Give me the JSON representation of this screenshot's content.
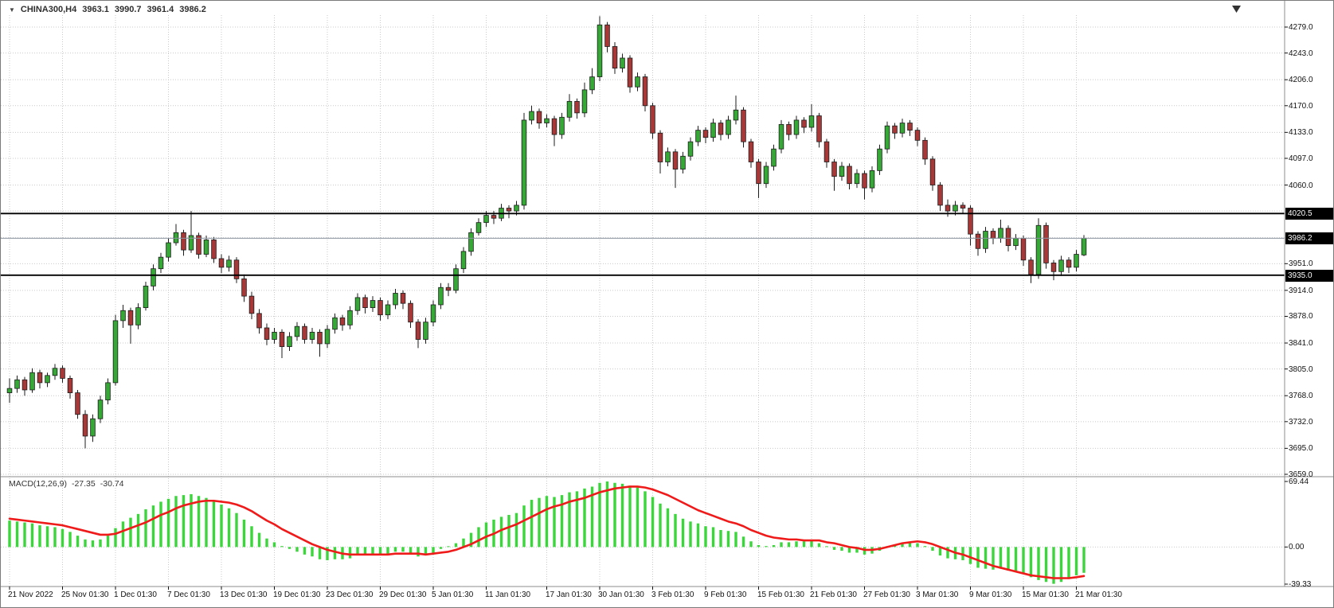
{
  "header": {
    "dropdown_icon": "▼",
    "symbol_period": "CHINA300,H4",
    "open": "3963.1",
    "high": "3990.7",
    "low": "3961.4",
    "close": "3986.2"
  },
  "colors": {
    "background": "#ffffff",
    "grid": "#c9c9c9",
    "bull_body": "#35a835",
    "bear_body": "#a83838",
    "candle_border": "#1c1c1c",
    "wick": "#1c1c1c",
    "macd_histogram": "#3bd63b",
    "macd_signal": "#ef1a1a",
    "hline": "#000000",
    "bid_line": "#8a93a0",
    "badge_bg": "#000000",
    "badge_text": "#ffffff",
    "separator": "#8c8c8c",
    "axis_text": "#111111",
    "shift_marker": "#333333"
  },
  "chart_data": {
    "type": "candlestick",
    "title": "CHINA300,H4",
    "symbol": "CHINA300",
    "timeframe": "H4",
    "current_bar": {
      "open": 3963.1,
      "high": 3990.7,
      "low": 3961.4,
      "close": 3986.2
    },
    "price_axis": {
      "min": 3659.0,
      "max": 4279.0,
      "visible_ticks": [
        "4279.0",
        "4243.0",
        "4206.0",
        "4170.0",
        "4133.0",
        "4097.0",
        "4060.0",
        "3951.0",
        "3914.0",
        "3878.0",
        "3841.0",
        "3805.0",
        "3768.0",
        "3732.0",
        "3695.0",
        "3659.0"
      ],
      "grid_levels": [
        3659,
        3695,
        3732,
        3768,
        3805,
        3841,
        3878,
        3914,
        3951,
        3987,
        4024,
        4060,
        4097,
        4133,
        4170,
        4206,
        4243,
        4279
      ]
    },
    "x_labels": [
      [
        "21 Nov 2022",
        0
      ],
      [
        "25 Nov 01:30",
        7
      ],
      [
        "1 Dec 01:30",
        14
      ],
      [
        "7 Dec 01:30",
        21
      ],
      [
        "13 Dec 01:30",
        28
      ],
      [
        "19 Dec 01:30",
        35
      ],
      [
        "23 Dec 01:30",
        42
      ],
      [
        "29 Dec 01:30",
        49
      ],
      [
        "5 Jan 01:30",
        56
      ],
      [
        "11 Jan 01:30",
        63
      ],
      [
        "17 Jan 01:30",
        71
      ],
      [
        "30 Jan 01:30",
        78
      ],
      [
        "3 Feb 01:30",
        85
      ],
      [
        "9 Feb 01:30",
        92
      ],
      [
        "15 Feb 01:30",
        99
      ],
      [
        "21 Feb 01:30",
        106
      ],
      [
        "27 Feb 01:30",
        113
      ],
      [
        "3 Mar 01:30",
        120
      ],
      [
        "9 Mar 01:30",
        127
      ],
      [
        "15 Mar 01:30",
        134
      ],
      [
        "21 Mar 01:30",
        141
      ]
    ],
    "horizontal_lines": [
      {
        "price": 4020.5,
        "label": "4020.5"
      },
      {
        "price": 3935.0,
        "label": "3935.0"
      }
    ],
    "bid": {
      "price": 3986.2,
      "label": "3986.2"
    },
    "candles": [
      [
        3772,
        3792,
        3758,
        3778
      ],
      [
        3778,
        3796,
        3772,
        3790
      ],
      [
        3790,
        3794,
        3768,
        3776
      ],
      [
        3776,
        3806,
        3772,
        3800
      ],
      [
        3800,
        3804,
        3778,
        3786
      ],
      [
        3786,
        3800,
        3780,
        3796
      ],
      [
        3796,
        3812,
        3790,
        3806
      ],
      [
        3806,
        3810,
        3786,
        3792
      ],
      [
        3792,
        3796,
        3764,
        3772
      ],
      [
        3772,
        3776,
        3736,
        3742
      ],
      [
        3742,
        3748,
        3695,
        3712
      ],
      [
        3712,
        3742,
        3704,
        3736
      ],
      [
        3736,
        3768,
        3730,
        3762
      ],
      [
        3762,
        3792,
        3756,
        3786
      ],
      [
        3786,
        3880,
        3782,
        3872
      ],
      [
        3872,
        3894,
        3862,
        3886
      ],
      [
        3886,
        3890,
        3840,
        3866
      ],
      [
        3866,
        3896,
        3860,
        3890
      ],
      [
        3890,
        3926,
        3886,
        3920
      ],
      [
        3920,
        3950,
        3914,
        3944
      ],
      [
        3944,
        3966,
        3938,
        3960
      ],
      [
        3960,
        3986,
        3954,
        3980
      ],
      [
        3980,
        4006,
        3976,
        3994
      ],
      [
        3994,
        3998,
        3962,
        3970
      ],
      [
        3970,
        4024,
        3966,
        3990
      ],
      [
        3990,
        3994,
        3958,
        3964
      ],
      [
        3964,
        3990,
        3960,
        3984
      ],
      [
        3984,
        3988,
        3952,
        3958
      ],
      [
        3958,
        3964,
        3938,
        3946
      ],
      [
        3946,
        3962,
        3940,
        3956
      ],
      [
        3956,
        3960,
        3924,
        3930
      ],
      [
        3930,
        3936,
        3898,
        3906
      ],
      [
        3906,
        3912,
        3874,
        3882
      ],
      [
        3882,
        3888,
        3854,
        3862
      ],
      [
        3862,
        3868,
        3838,
        3846
      ],
      [
        3846,
        3862,
        3840,
        3856
      ],
      [
        3856,
        3860,
        3820,
        3836
      ],
      [
        3836,
        3856,
        3830,
        3850
      ],
      [
        3850,
        3870,
        3844,
        3864
      ],
      [
        3864,
        3868,
        3840,
        3846
      ],
      [
        3846,
        3862,
        3840,
        3856
      ],
      [
        3856,
        3860,
        3822,
        3840
      ],
      [
        3840,
        3866,
        3834,
        3860
      ],
      [
        3860,
        3882,
        3854,
        3876
      ],
      [
        3876,
        3880,
        3858,
        3866
      ],
      [
        3866,
        3892,
        3860,
        3886
      ],
      [
        3886,
        3910,
        3880,
        3904
      ],
      [
        3904,
        3908,
        3882,
        3890
      ],
      [
        3890,
        3906,
        3884,
        3900
      ],
      [
        3900,
        3904,
        3872,
        3880
      ],
      [
        3880,
        3900,
        3874,
        3894
      ],
      [
        3894,
        3916,
        3888,
        3910
      ],
      [
        3910,
        3914,
        3888,
        3896
      ],
      [
        3896,
        3900,
        3862,
        3870
      ],
      [
        3870,
        3874,
        3834,
        3846
      ],
      [
        3846,
        3876,
        3840,
        3870
      ],
      [
        3870,
        3900,
        3864,
        3894
      ],
      [
        3894,
        3924,
        3888,
        3918
      ],
      [
        3918,
        3924,
        3906,
        3914
      ],
      [
        3914,
        3950,
        3910,
        3944
      ],
      [
        3944,
        3974,
        3938,
        3968
      ],
      [
        3968,
        4000,
        3962,
        3994
      ],
      [
        3994,
        4014,
        3990,
        4008
      ],
      [
        4008,
        4024,
        4002,
        4018
      ],
      [
        4018,
        4024,
        4006,
        4014
      ],
      [
        4014,
        4034,
        4010,
        4028
      ],
      [
        4028,
        4032,
        4014,
        4024
      ],
      [
        4024,
        4038,
        4018,
        4032
      ],
      [
        4032,
        4160,
        4026,
        4150
      ],
      [
        4150,
        4170,
        4144,
        4162
      ],
      [
        4162,
        4166,
        4138,
        4146
      ],
      [
        4146,
        4158,
        4140,
        4152
      ],
      [
        4152,
        4156,
        4114,
        4130
      ],
      [
        4130,
        4160,
        4124,
        4154
      ],
      [
        4154,
        4186,
        4148,
        4176
      ],
      [
        4176,
        4180,
        4152,
        4160
      ],
      [
        4160,
        4202,
        4154,
        4192
      ],
      [
        4192,
        4222,
        4186,
        4210
      ],
      [
        4210,
        4294,
        4204,
        4282
      ],
      [
        4282,
        4286,
        4244,
        4252
      ],
      [
        4252,
        4258,
        4214,
        4222
      ],
      [
        4222,
        4242,
        4216,
        4236
      ],
      [
        4236,
        4240,
        4188,
        4196
      ],
      [
        4196,
        4216,
        4190,
        4210
      ],
      [
        4210,
        4214,
        4162,
        4170
      ],
      [
        4170,
        4174,
        4124,
        4132
      ],
      [
        4132,
        4136,
        4076,
        4092
      ],
      [
        4092,
        4112,
        4086,
        4106
      ],
      [
        4106,
        4110,
        4056,
        4082
      ],
      [
        4082,
        4106,
        4076,
        4100
      ],
      [
        4100,
        4126,
        4094,
        4120
      ],
      [
        4120,
        4142,
        4114,
        4136
      ],
      [
        4136,
        4140,
        4118,
        4126
      ],
      [
        4126,
        4152,
        4120,
        4146
      ],
      [
        4146,
        4150,
        4122,
        4130
      ],
      [
        4130,
        4156,
        4124,
        4150
      ],
      [
        4150,
        4184,
        4144,
        4164
      ],
      [
        4164,
        4168,
        4112,
        4120
      ],
      [
        4120,
        4124,
        4084,
        4092
      ],
      [
        4092,
        4096,
        4042,
        4062
      ],
      [
        4062,
        4092,
        4056,
        4086
      ],
      [
        4086,
        4116,
        4080,
        4110
      ],
      [
        4110,
        4150,
        4104,
        4144
      ],
      [
        4144,
        4148,
        4122,
        4130
      ],
      [
        4130,
        4156,
        4124,
        4150
      ],
      [
        4150,
        4154,
        4132,
        4140
      ],
      [
        4140,
        4172,
        4134,
        4156
      ],
      [
        4156,
        4160,
        4112,
        4120
      ],
      [
        4120,
        4124,
        4084,
        4092
      ],
      [
        4092,
        4096,
        4052,
        4072
      ],
      [
        4072,
        4092,
        4066,
        4086
      ],
      [
        4086,
        4090,
        4054,
        4062
      ],
      [
        4062,
        4082,
        4056,
        4076
      ],
      [
        4076,
        4080,
        4040,
        4056
      ],
      [
        4056,
        4086,
        4050,
        4080
      ],
      [
        4080,
        4116,
        4074,
        4110
      ],
      [
        4110,
        4148,
        4104,
        4142
      ],
      [
        4142,
        4146,
        4124,
        4132
      ],
      [
        4132,
        4152,
        4126,
        4146
      ],
      [
        4146,
        4150,
        4128,
        4136
      ],
      [
        4136,
        4140,
        4114,
        4122
      ],
      [
        4122,
        4126,
        4088,
        4096
      ],
      [
        4096,
        4100,
        4052,
        4060
      ],
      [
        4060,
        4064,
        4024,
        4032
      ],
      [
        4032,
        4040,
        4016,
        4024
      ],
      [
        4024,
        4038,
        4018,
        4032
      ],
      [
        4032,
        4036,
        4020,
        4028
      ],
      [
        4028,
        4032,
        3976,
        3992
      ],
      [
        3992,
        3996,
        3962,
        3972
      ],
      [
        3972,
        4002,
        3966,
        3996
      ],
      [
        3996,
        4000,
        3978,
        3986
      ],
      [
        3986,
        4012,
        3980,
        4000
      ],
      [
        4000,
        4004,
        3968,
        3976
      ],
      [
        3976,
        3992,
        3970,
        3986
      ],
      [
        3986,
        3990,
        3948,
        3956
      ],
      [
        3956,
        3960,
        3924,
        3936
      ],
      [
        3936,
        4014,
        3930,
        4004
      ],
      [
        4004,
        4008,
        3944,
        3952
      ],
      [
        3952,
        3956,
        3928,
        3940
      ],
      [
        3940,
        3962,
        3934,
        3956
      ],
      [
        3956,
        3960,
        3938,
        3946
      ],
      [
        3946,
        3970,
        3940,
        3964
      ],
      [
        3963.1,
        3990.7,
        3961.4,
        3986.2
      ]
    ],
    "indicator": {
      "name": "MACD(12,26,9)",
      "main_value": "-27.35",
      "signal_value": "-30.74",
      "axis_ticks": [
        "69.44",
        "0.00",
        "-39.33"
      ],
      "axis_max": 69.44,
      "axis_min": -39.33,
      "histogram": [
        28,
        27,
        26,
        25,
        23,
        22,
        21,
        19,
        16,
        12,
        8,
        7,
        8,
        12,
        20,
        27,
        31,
        35,
        40,
        44,
        48,
        51,
        54,
        55,
        56,
        54,
        52,
        49,
        45,
        41,
        36,
        29,
        22,
        15,
        9,
        5,
        1,
        -2,
        -5,
        -8,
        -10,
        -13,
        -14,
        -13,
        -13,
        -12,
        -9,
        -8,
        -7,
        -8,
        -7,
        -5,
        -5,
        -7,
        -10,
        -9,
        -6,
        -2,
        0,
        4,
        9,
        15,
        21,
        26,
        29,
        32,
        34,
        36,
        44,
        50,
        52,
        54,
        53,
        55,
        58,
        59,
        62,
        64,
        68,
        69.4,
        68,
        67,
        65,
        63,
        59,
        53,
        46,
        41,
        35,
        30,
        27,
        25,
        22,
        21,
        18,
        17,
        16,
        11,
        6,
        2,
        1,
        2,
        5,
        5,
        6,
        6,
        7,
        4,
        0,
        -3,
        -4,
        -6,
        -6,
        -8,
        -7,
        -4,
        0,
        2,
        4,
        5,
        4,
        1,
        -4,
        -9,
        -12,
        -13,
        -14,
        -18,
        -22,
        -23,
        -24,
        -23,
        -25,
        -25,
        -28,
        -32,
        -35,
        -37,
        -39,
        -37,
        -34,
        -30,
        -27.35
      ],
      "signal": [
        30,
        29,
        28,
        27,
        26,
        25,
        24,
        23,
        21,
        19,
        17,
        15,
        13,
        13,
        14,
        17,
        20,
        23,
        26,
        30,
        34,
        37,
        41,
        44,
        46,
        48,
        49,
        49,
        48,
        47,
        45,
        42,
        38,
        33,
        28,
        24,
        19,
        15,
        11,
        7,
        3,
        0,
        -3,
        -5,
        -7,
        -8,
        -8,
        -8,
        -8,
        -8,
        -8,
        -7,
        -7,
        -7,
        -7,
        -8,
        -7,
        -6,
        -5,
        -3,
        0,
        3,
        7,
        11,
        14,
        18,
        21,
        24,
        28,
        32,
        36,
        40,
        43,
        45,
        48,
        50,
        52,
        55,
        58,
        60,
        62,
        63,
        64,
        64,
        63,
        61,
        58,
        55,
        51,
        47,
        43,
        39,
        36,
        33,
        30,
        27,
        25,
        22,
        18,
        15,
        12,
        10,
        9,
        8,
        8,
        7,
        7,
        7,
        5,
        4,
        2,
        0,
        -1,
        -3,
        -3,
        -2,
        0,
        2,
        4,
        5,
        6,
        5,
        3,
        0,
        -3,
        -6,
        -8,
        -11,
        -14,
        -17,
        -20,
        -22,
        -24,
        -26,
        -28,
        -30,
        -31,
        -32,
        -33,
        -33,
        -33,
        -32,
        -30.74
      ]
    }
  }
}
